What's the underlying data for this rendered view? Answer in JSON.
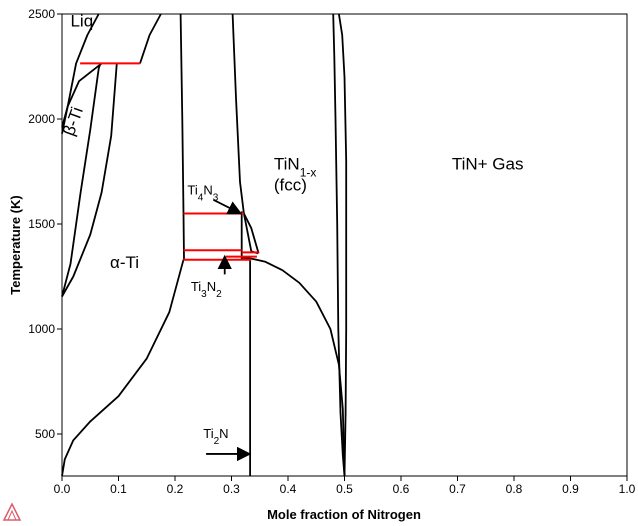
{
  "chart_data": {
    "type": "phase-diagram",
    "title": "",
    "xlabel": "Mole fraction of Nitrogen",
    "ylabel": "Temperature (K)",
    "xlim": [
      0.0,
      1.0
    ],
    "ylim": [
      300,
      2500
    ],
    "x_ticks": [
      "0.0",
      "0.1",
      "0.2",
      "0.3",
      "0.4",
      "0.5",
      "0.6",
      "0.7",
      "0.8",
      "0.9",
      "1.0"
    ],
    "x_tick_values": [
      0.0,
      0.1,
      0.2,
      0.3,
      0.4,
      0.5,
      0.6,
      0.7,
      0.8,
      0.9,
      1.0
    ],
    "y_ticks": [
      "500",
      "1000",
      "1500",
      "2000",
      "2500"
    ],
    "y_tick_values": [
      500,
      1000,
      1500,
      2000,
      2500
    ],
    "grid": false,
    "line_color": "#000000",
    "invariant_color": "#ff0000",
    "region_labels": [
      {
        "text": "Liq",
        "x": 0.015,
        "y": 2440
      },
      {
        "text": "α-Ti",
        "x": 0.085,
        "y": 1290
      },
      {
        "text": "TiN",
        "sub": "1-x",
        "x": 0.375,
        "y": 1760
      },
      {
        "text": "(fcc)",
        "x": 0.375,
        "y": 1660
      },
      {
        "text": "TiN+ Gas",
        "x": 0.69,
        "y": 1760
      }
    ],
    "rotated_label": {
      "text": "β-Ti",
      "x": 0.02,
      "y": 1915,
      "angle": -70
    },
    "phase_labels": [
      {
        "text": "Ti",
        "sub1": "4",
        "text2": "N",
        "sub2": "3",
        "x": 0.222,
        "y": 1640
      },
      {
        "text": "Ti",
        "sub1": "3",
        "text2": "N",
        "sub2": "2",
        "x": 0.228,
        "y": 1180
      },
      {
        "text": "Ti",
        "sub1": "2",
        "text2": "N",
        "sub2": "",
        "x": 0.25,
        "y": 480
      }
    ],
    "arrows": [
      {
        "from": [
          0.268,
          1615
        ],
        "to": [
          0.316,
          1550
        ]
      },
      {
        "from": [
          0.288,
          1260
        ],
        "to": [
          0.288,
          1345
        ]
      },
      {
        "from": [
          0.255,
          405
        ],
        "to": [
          0.332,
          405
        ]
      }
    ],
    "boundaries": [
      [
        [
          0.0,
          300
        ],
        [
          0.005,
          380
        ],
        [
          0.02,
          470
        ],
        [
          0.05,
          560
        ],
        [
          0.1,
          680
        ],
        [
          0.15,
          860
        ],
        [
          0.19,
          1080
        ],
        [
          0.215,
          1330
        ]
      ],
      [
        [
          0.0,
          1155
        ],
        [
          0.02,
          1250
        ],
        [
          0.05,
          1450
        ],
        [
          0.07,
          1650
        ],
        [
          0.087,
          1920
        ],
        [
          0.097,
          2265
        ]
      ],
      [
        [
          0.0,
          1155
        ],
        [
          0.015,
          1310
        ],
        [
          0.033,
          1650
        ],
        [
          0.05,
          1950
        ],
        [
          0.065,
          2240
        ],
        [
          0.068,
          2265
        ]
      ],
      [
        [
          0.0,
          1930
        ],
        [
          0.01,
          2060
        ],
        [
          0.025,
          2265
        ],
        [
          0.045,
          2400
        ],
        [
          0.065,
          2500
        ]
      ],
      [
        [
          0.0,
          1960
        ],
        [
          0.01,
          2060
        ],
        [
          0.03,
          2180
        ],
        [
          0.07,
          2265
        ]
      ],
      [
        [
          0.138,
          2265
        ],
        [
          0.155,
          2400
        ],
        [
          0.175,
          2500
        ]
      ],
      [
        [
          0.21,
          2500
        ],
        [
          0.213,
          2000
        ],
        [
          0.215,
          1550
        ],
        [
          0.216,
          1330
        ]
      ],
      [
        [
          0.302,
          2500
        ],
        [
          0.308,
          2100
        ],
        [
          0.315,
          1700
        ],
        [
          0.322,
          1550
        ],
        [
          0.335,
          1370
        ],
        [
          0.347,
          1360
        ]
      ],
      [
        [
          0.322,
          1550
        ],
        [
          0.335,
          1480
        ],
        [
          0.348,
          1360
        ]
      ],
      [
        [
          0.318,
          1340
        ],
        [
          0.335,
          1335
        ],
        [
          0.36,
          1320
        ],
        [
          0.39,
          1280
        ],
        [
          0.42,
          1220
        ],
        [
          0.45,
          1130
        ],
        [
          0.475,
          1000
        ],
        [
          0.49,
          830
        ],
        [
          0.497,
          620
        ],
        [
          0.5,
          300
        ]
      ],
      [
        [
          0.48,
          2500
        ],
        [
          0.482,
          2300
        ],
        [
          0.484,
          2000
        ],
        [
          0.487,
          1500
        ],
        [
          0.489,
          1000
        ],
        [
          0.493,
          600
        ],
        [
          0.497,
          400
        ],
        [
          0.5,
          300
        ]
      ],
      [
        [
          0.49,
          2500
        ],
        [
          0.496,
          2400
        ],
        [
          0.5,
          2200
        ],
        [
          0.503,
          1800
        ],
        [
          0.503,
          1000
        ],
        [
          0.502,
          600
        ],
        [
          0.5,
          300
        ]
      ],
      [
        [
          0.318,
          1560
        ],
        [
          0.318,
          1330
        ]
      ],
      [
        [
          0.333,
          1330
        ],
        [
          0.333,
          300
        ]
      ]
    ],
    "invariants": [
      [
        [
          0.032,
          2265
        ],
        [
          0.138,
          2265
        ]
      ],
      [
        [
          0.215,
          1550
        ],
        [
          0.322,
          1550
        ]
      ],
      [
        [
          0.215,
          1375
        ],
        [
          0.318,
          1375
        ]
      ],
      [
        [
          0.318,
          1365
        ],
        [
          0.348,
          1365
        ]
      ],
      [
        [
          0.215,
          1330
        ],
        [
          0.335,
          1330
        ]
      ],
      [
        [
          0.29,
          1345
        ],
        [
          0.345,
          1345
        ]
      ]
    ]
  }
}
